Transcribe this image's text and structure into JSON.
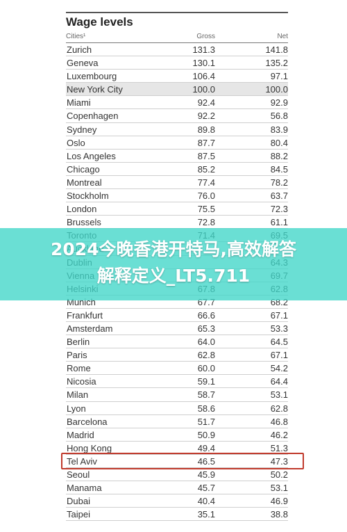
{
  "table": {
    "title": "Wage levels",
    "columns": {
      "city": "Cities¹",
      "gross": "Gross",
      "net": "Net"
    },
    "rows": [
      {
        "city": "Zurich",
        "gross": "131.3",
        "net": "141.8"
      },
      {
        "city": "Geneva",
        "gross": "130.1",
        "net": "135.2"
      },
      {
        "city": "Luxembourg",
        "gross": "106.4",
        "net": "97.1"
      },
      {
        "city": "New York City",
        "gross": "100.0",
        "net": "100.0",
        "highlight": true
      },
      {
        "city": "Miami",
        "gross": "92.4",
        "net": "92.9"
      },
      {
        "city": "Copenhagen",
        "gross": "92.2",
        "net": "56.8"
      },
      {
        "city": "Sydney",
        "gross": "89.8",
        "net": "83.9"
      },
      {
        "city": "Oslo",
        "gross": "87.7",
        "net": "80.4"
      },
      {
        "city": "Los Angeles",
        "gross": "87.5",
        "net": "88.2"
      },
      {
        "city": "Chicago",
        "gross": "85.2",
        "net": "84.5"
      },
      {
        "city": "Montreal",
        "gross": "77.4",
        "net": "78.2"
      },
      {
        "city": "Stockholm",
        "gross": "76.0",
        "net": "63.7"
      },
      {
        "city": "London",
        "gross": "75.5",
        "net": "72.3"
      },
      {
        "city": "Brussels",
        "gross": "72.8",
        "net": "61.1"
      },
      {
        "city": "Toronto",
        "gross": "71.4",
        "net": "69.5"
      },
      {
        "city": "Auckland",
        "gross": "",
        "net": ""
      },
      {
        "city": "Dublin",
        "gross": "",
        "net": "64.3"
      },
      {
        "city": "Vienna",
        "gross": "",
        "net": "69.7"
      },
      {
        "city": "Helsinki",
        "gross": "67.8",
        "net": "62.8"
      },
      {
        "city": "Munich",
        "gross": "67.7",
        "net": "68.2"
      },
      {
        "city": "Frankfurt",
        "gross": "66.6",
        "net": "67.1"
      },
      {
        "city": "Amsterdam",
        "gross": "65.3",
        "net": "53.3"
      },
      {
        "city": "Berlin",
        "gross": "64.0",
        "net": "64.5"
      },
      {
        "city": "Paris",
        "gross": "62.8",
        "net": "67.1"
      },
      {
        "city": "Rome",
        "gross": "60.0",
        "net": "54.2"
      },
      {
        "city": "Nicosia",
        "gross": "59.1",
        "net": "64.4"
      },
      {
        "city": "Milan",
        "gross": "58.7",
        "net": "53.1"
      },
      {
        "city": "Lyon",
        "gross": "58.6",
        "net": "62.8"
      },
      {
        "city": "Barcelona",
        "gross": "51.7",
        "net": "46.8"
      },
      {
        "city": "Madrid",
        "gross": "50.9",
        "net": "46.2"
      },
      {
        "city": "Hong Kong",
        "gross": "49.4",
        "net": "51.3",
        "boxed": true
      },
      {
        "city": "Tel Aviv",
        "gross": "46.5",
        "net": "47.3"
      },
      {
        "city": "Seoul",
        "gross": "45.9",
        "net": "50.2"
      },
      {
        "city": "Manama",
        "gross": "45.7",
        "net": "53.1"
      },
      {
        "city": "Dubai",
        "gross": "40.4",
        "net": "46.9"
      },
      {
        "city": "Taipei",
        "gross": "35.1",
        "net": "38.8"
      }
    ]
  },
  "overlay": {
    "line1": "2024今晚香港开特马,高效解答",
    "line2": "解释定义_LT5.711"
  },
  "colors": {
    "overlay_band": "#40d6c8",
    "highlight_row": "#e6e6e6",
    "hong_kong_box": "#c0392b"
  }
}
